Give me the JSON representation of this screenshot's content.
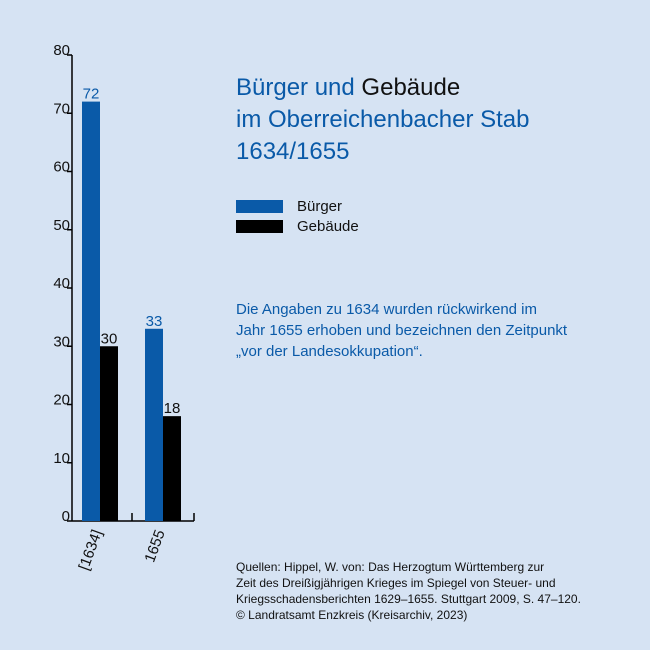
{
  "title": {
    "line1_part1": "Bürger und",
    "line1_part2": "Gebäude",
    "line2": "im Oberreichenbacher Stab",
    "line3": "1634/1655"
  },
  "colors": {
    "buerger": "#0a5aa8",
    "gebaeude": "#000000",
    "background": "#d6e3f3"
  },
  "note": {
    "line1": "Die Angaben zu 1634 wurden rückwirkend im",
    "line2": "Jahr 1655 erhoben und bezeichnen den Zeitpunkt",
    "line3": "„vor der Landesokkupation“."
  },
  "source": {
    "line1": "Quellen: Hippel, W. von: Das Herzogtum Württemberg zur",
    "line2": "Zeit des Dreißigjährigen Krieges im Spiegel von Steuer- und",
    "line3": "Kriegsschadensberichten 1629–1655. Stuttgart 2009, S. 47–120.",
    "line4": "© Landratsamt Enzkreis (Kreisarchiv, 2023)"
  },
  "chart_data": {
    "type": "bar",
    "categories": [
      "[1634]",
      "1655"
    ],
    "series": [
      {
        "name": "Bürger",
        "values": [
          72,
          33
        ],
        "color": "#0a5aa8"
      },
      {
        "name": "Gebäude",
        "values": [
          30,
          18
        ],
        "color": "#000000"
      }
    ],
    "yticks": [
      0,
      10,
      20,
      30,
      40,
      50,
      60,
      70,
      80
    ],
    "ylim": [
      0,
      80
    ],
    "grid": false,
    "legend": "right"
  }
}
